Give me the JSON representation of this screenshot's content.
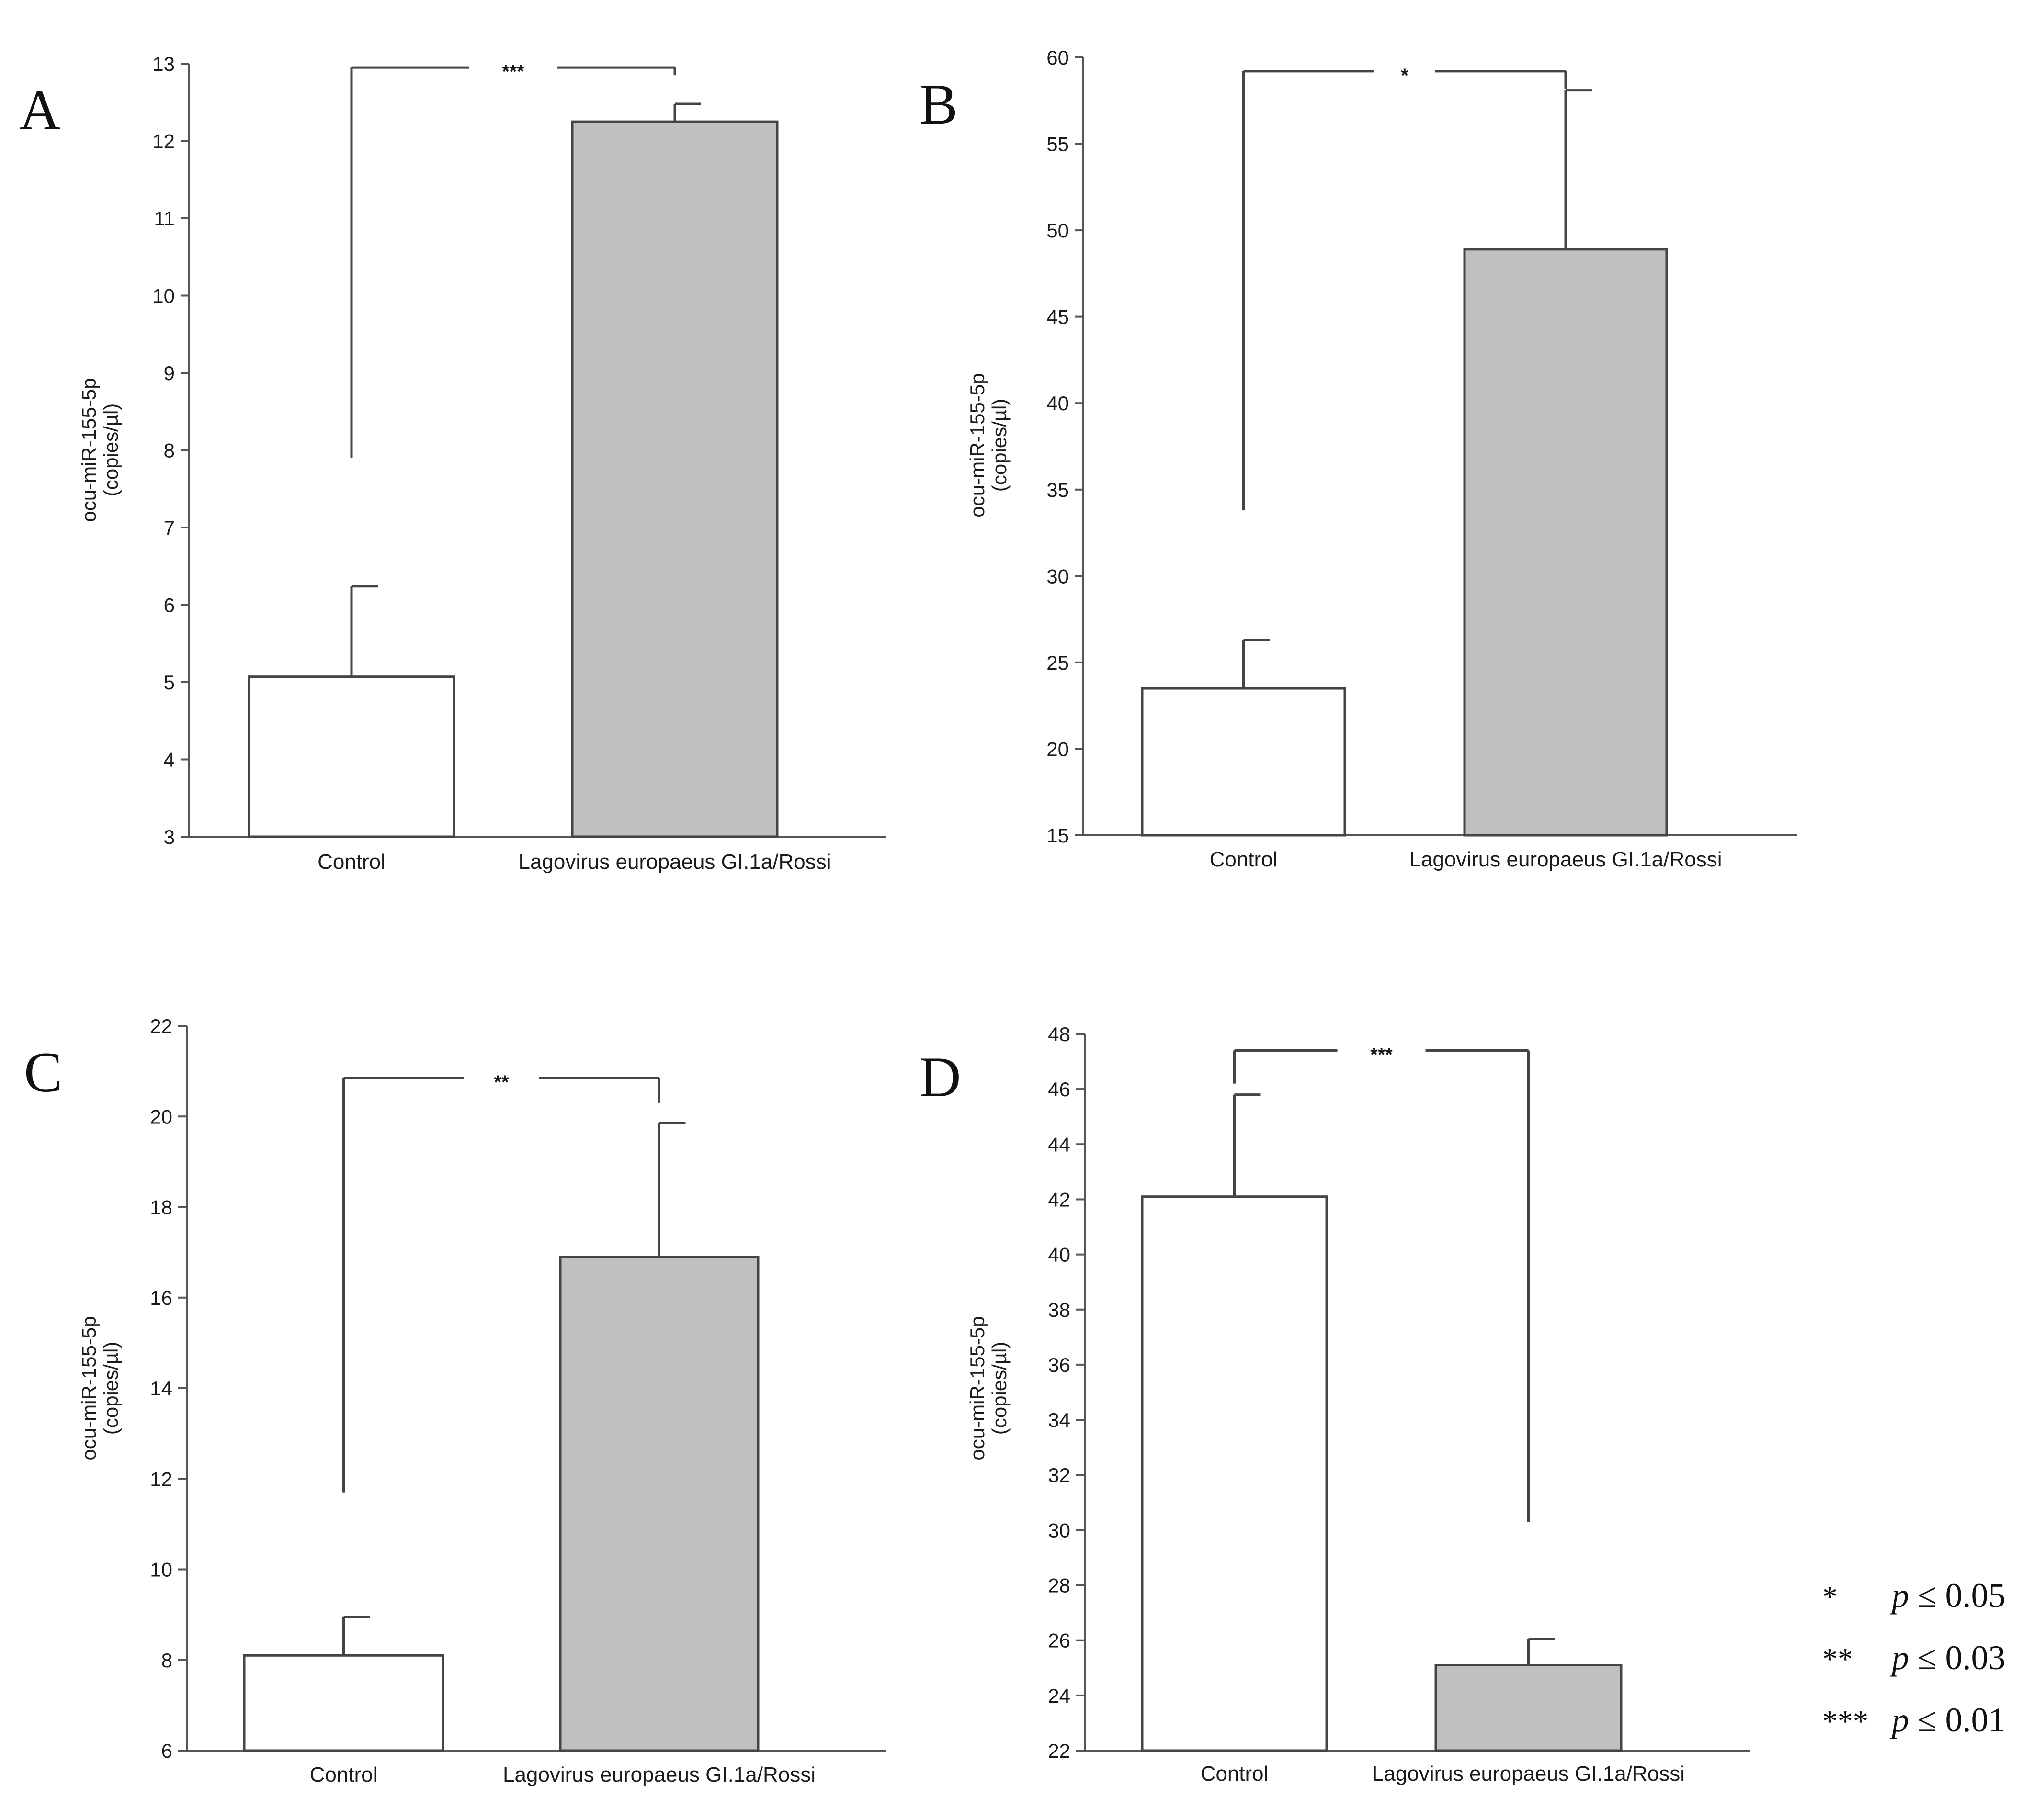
{
  "chart_data": [
    {
      "panel": "A",
      "type": "bar",
      "categories": [
        "Control",
        "Lagovirus europaeus GI.1a/Rossi"
      ],
      "values": [
        5.07,
        12.25
      ],
      "errors": [
        1.17,
        0.23
      ],
      "bar_colors": [
        "#ffffff",
        "#c0c0c0"
      ],
      "ylabel_line1": "ocu-miR-155-5p",
      "ylabel_line2": "(copies/µl)",
      "ylim": [
        3,
        13
      ],
      "yticks": [
        3,
        4,
        5,
        6,
        7,
        8,
        9,
        10,
        11,
        12,
        13
      ],
      "significance": "***",
      "bracket_level": 12.95,
      "bracket_drop": [
        7.9,
        12.85
      ]
    },
    {
      "panel": "B",
      "type": "bar",
      "categories": [
        "Control",
        "Lagovirus europaeus GI.1a/Rossi"
      ],
      "values": [
        23.5,
        48.9
      ],
      "errors": [
        2.8,
        9.2
      ],
      "bar_colors": [
        "#ffffff",
        "#c0c0c0"
      ],
      "ylabel_line1": "ocu-miR-155-5p",
      "ylabel_line2": "(copies/µl)",
      "ylim": [
        15,
        60
      ],
      "yticks": [
        15,
        20,
        25,
        30,
        35,
        40,
        45,
        50,
        55,
        60
      ],
      "significance": "*",
      "bracket_level": 59.2,
      "bracket_drop": [
        33.8,
        58.2
      ]
    },
    {
      "panel": "C",
      "type": "bar",
      "categories": [
        "Control",
        "Lagovirus europaeus GI.1a/Rossi"
      ],
      "values": [
        8.1,
        16.9
      ],
      "errors": [
        0.85,
        2.95
      ],
      "bar_colors": [
        "#ffffff",
        "#c0c0c0"
      ],
      "ylabel_line1": "ocu-miR-155-5p",
      "ylabel_line2": "(copies/µl)",
      "ylim": [
        6,
        22
      ],
      "yticks": [
        6,
        8,
        10,
        12,
        14,
        16,
        18,
        20,
        22
      ],
      "significance": "**",
      "bracket_level": 20.85,
      "bracket_drop": [
        11.7,
        20.3
      ]
    },
    {
      "panel": "D",
      "type": "bar",
      "categories": [
        "Control",
        "Lagovirus europaeus GI.1a/Rossi"
      ],
      "values": [
        42.1,
        25.1
      ],
      "errors": [
        3.7,
        0.95
      ],
      "bar_colors": [
        "#ffffff",
        "#c0c0c0"
      ],
      "ylabel_line1": "ocu-miR-155-5p",
      "ylabel_line2": "(copies/µl)",
      "ylim": [
        22,
        48
      ],
      "yticks": [
        22,
        24,
        26,
        28,
        30,
        32,
        34,
        36,
        38,
        40,
        42,
        44,
        46,
        48
      ],
      "significance": "***",
      "bracket_level": 47.4,
      "bracket_drop": [
        46.2,
        30.3
      ]
    }
  ],
  "legend": [
    {
      "stars": "*",
      "p_symbol": "p",
      "threshold": "≤ 0.05"
    },
    {
      "stars": "**",
      "p_symbol": "p",
      "threshold": "≤ 0.03"
    },
    {
      "stars": "***",
      "p_symbol": "p",
      "threshold": "≤ 0.01"
    }
  ]
}
